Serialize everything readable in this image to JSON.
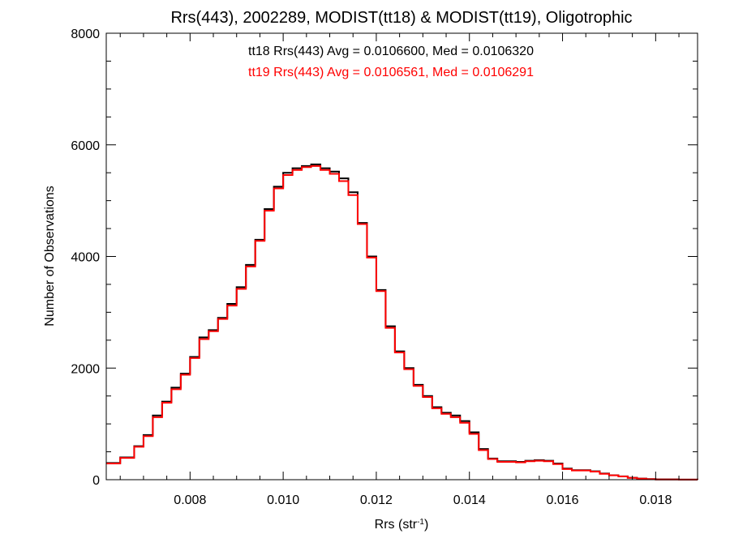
{
  "chart_data": {
    "type": "line",
    "step": true,
    "title": "Rrs(443), 2002289, MODIST(tt18) & MODIST(tt19), Oligotrophic",
    "xlabel_base": "Rrs (str",
    "xlabel_sup": "-1",
    "xlabel_close": ")",
    "ylabel": "Number of Observations",
    "xlim": [
      0.0062,
      0.0189
    ],
    "ylim": [
      0,
      8000
    ],
    "x_ticks": [
      0.008,
      0.01,
      0.012,
      0.014,
      0.016,
      0.018
    ],
    "x_tick_labels": [
      "0.008",
      "0.010",
      "0.012",
      "0.014",
      "0.016",
      "0.018"
    ],
    "y_ticks": [
      0,
      2000,
      4000,
      6000,
      8000
    ],
    "y_tick_labels": [
      "0",
      "2000",
      "4000",
      "6000",
      "8000"
    ],
    "grid": false,
    "annotations": [
      {
        "text": "tt18 Rrs(443) Avg = 0.0106600, Med = 0.0106320",
        "color": "#000000"
      },
      {
        "text": "tt19 Rrs(443) Avg = 0.0106561, Med = 0.0106291",
        "color": "#ff0000"
      }
    ],
    "series": [
      {
        "color": "#000000",
        "points": [
          [
            0.0062,
            300
          ],
          [
            0.0065,
            400
          ],
          [
            0.0068,
            600
          ],
          [
            0.007,
            800
          ],
          [
            0.0072,
            1150
          ],
          [
            0.0074,
            1400
          ],
          [
            0.0076,
            1650
          ],
          [
            0.0078,
            1900
          ],
          [
            0.008,
            2200
          ],
          [
            0.0082,
            2550
          ],
          [
            0.0084,
            2680
          ],
          [
            0.0086,
            2900
          ],
          [
            0.0088,
            3150
          ],
          [
            0.009,
            3450
          ],
          [
            0.0092,
            3850
          ],
          [
            0.0094,
            4300
          ],
          [
            0.0096,
            4850
          ],
          [
            0.0098,
            5250
          ],
          [
            0.01,
            5500
          ],
          [
            0.0102,
            5580
          ],
          [
            0.0104,
            5620
          ],
          [
            0.0106,
            5650
          ],
          [
            0.0108,
            5580
          ],
          [
            0.011,
            5520
          ],
          [
            0.0112,
            5400
          ],
          [
            0.0114,
            5150
          ],
          [
            0.0116,
            4600
          ],
          [
            0.0118,
            4000
          ],
          [
            0.012,
            3400
          ],
          [
            0.0122,
            2750
          ],
          [
            0.0124,
            2300
          ],
          [
            0.0126,
            2000
          ],
          [
            0.0128,
            1700
          ],
          [
            0.013,
            1500
          ],
          [
            0.0132,
            1300
          ],
          [
            0.0134,
            1200
          ],
          [
            0.0136,
            1150
          ],
          [
            0.0138,
            1050
          ],
          [
            0.014,
            850
          ],
          [
            0.0142,
            550
          ],
          [
            0.0144,
            380
          ],
          [
            0.0146,
            330
          ],
          [
            0.015,
            320
          ],
          [
            0.0152,
            340
          ],
          [
            0.0154,
            350
          ],
          [
            0.0156,
            340
          ],
          [
            0.0158,
            290
          ],
          [
            0.016,
            200
          ],
          [
            0.0162,
            170
          ],
          [
            0.0164,
            170
          ],
          [
            0.0166,
            150
          ],
          [
            0.0168,
            110
          ],
          [
            0.017,
            80
          ],
          [
            0.0172,
            60
          ],
          [
            0.0174,
            35
          ],
          [
            0.0176,
            20
          ],
          [
            0.0178,
            10
          ],
          [
            0.018,
            5
          ],
          [
            0.0185,
            2
          ],
          [
            0.0189,
            0
          ]
        ]
      },
      {
        "color": "#ff0000",
        "points": [
          [
            0.0062,
            290
          ],
          [
            0.0065,
            390
          ],
          [
            0.0068,
            590
          ],
          [
            0.007,
            780
          ],
          [
            0.0072,
            1120
          ],
          [
            0.0074,
            1380
          ],
          [
            0.0076,
            1620
          ],
          [
            0.0078,
            1880
          ],
          [
            0.008,
            2180
          ],
          [
            0.0082,
            2520
          ],
          [
            0.0084,
            2660
          ],
          [
            0.0086,
            2880
          ],
          [
            0.0088,
            3120
          ],
          [
            0.009,
            3420
          ],
          [
            0.0092,
            3820
          ],
          [
            0.0094,
            4280
          ],
          [
            0.0096,
            4820
          ],
          [
            0.0098,
            5220
          ],
          [
            0.01,
            5460
          ],
          [
            0.0102,
            5550
          ],
          [
            0.0104,
            5600
          ],
          [
            0.0106,
            5620
          ],
          [
            0.0108,
            5550
          ],
          [
            0.011,
            5480
          ],
          [
            0.0112,
            5350
          ],
          [
            0.0114,
            5100
          ],
          [
            0.0116,
            4580
          ],
          [
            0.0118,
            3980
          ],
          [
            0.012,
            3380
          ],
          [
            0.0122,
            2720
          ],
          [
            0.0124,
            2280
          ],
          [
            0.0126,
            1980
          ],
          [
            0.0128,
            1680
          ],
          [
            0.013,
            1480
          ],
          [
            0.0132,
            1280
          ],
          [
            0.0134,
            1180
          ],
          [
            0.0136,
            1120
          ],
          [
            0.0138,
            1020
          ],
          [
            0.014,
            820
          ],
          [
            0.0142,
            530
          ],
          [
            0.0144,
            370
          ],
          [
            0.0146,
            320
          ],
          [
            0.015,
            310
          ],
          [
            0.0152,
            330
          ],
          [
            0.0154,
            340
          ],
          [
            0.0156,
            330
          ],
          [
            0.0158,
            280
          ],
          [
            0.016,
            190
          ],
          [
            0.0162,
            165
          ],
          [
            0.0164,
            165
          ],
          [
            0.0166,
            145
          ],
          [
            0.0168,
            105
          ],
          [
            0.017,
            78
          ],
          [
            0.0172,
            58
          ],
          [
            0.0174,
            33
          ],
          [
            0.0176,
            18
          ],
          [
            0.0178,
            9
          ],
          [
            0.018,
            4
          ],
          [
            0.0185,
            2
          ],
          [
            0.0189,
            0
          ]
        ]
      }
    ]
  }
}
